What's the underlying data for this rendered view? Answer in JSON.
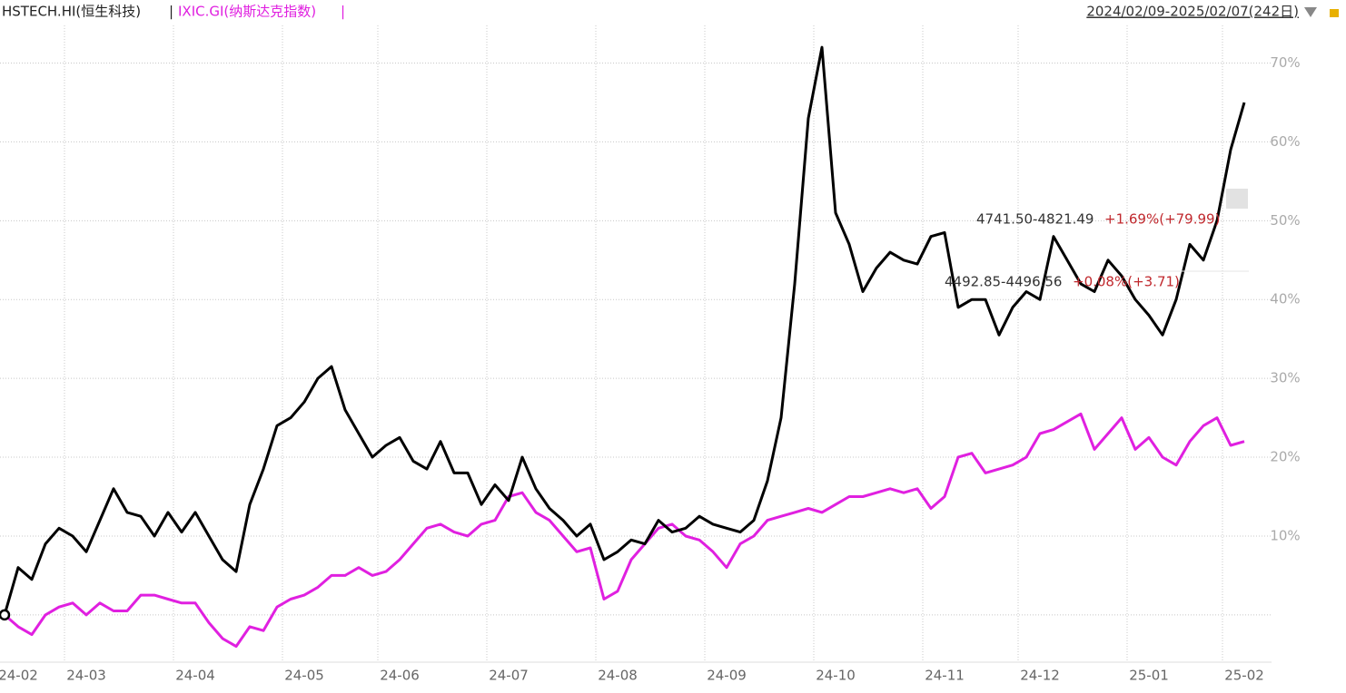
{
  "chart_data": {
    "type": "line",
    "header": {
      "left_series": "HSTECH.HI(恒生科技)",
      "separator": "|",
      "right_series": "IXIC.GI(纳斯达克指数)",
      "range": "2024/02/09-2025/02/07(242日)"
    },
    "categories": [
      null,
      "24-02",
      null,
      null,
      null,
      null,
      "24-03",
      null,
      null,
      null,
      null,
      null,
      null,
      null,
      "24-04",
      null,
      null,
      null,
      null,
      null,
      null,
      null,
      "24-05",
      null,
      null,
      null,
      null,
      null,
      null,
      "24-06",
      null,
      null,
      null,
      null,
      null,
      null,
      null,
      "24-07",
      null,
      null,
      null,
      null,
      null,
      null,
      null,
      "24-08",
      null,
      null,
      null,
      null,
      null,
      null,
      null,
      "24-09",
      null,
      null,
      null,
      null,
      null,
      null,
      null,
      "24-10",
      null,
      null,
      null,
      null,
      null,
      null,
      null,
      "24-11",
      null,
      null,
      null,
      null,
      null,
      null,
      "24-12",
      null,
      null,
      null,
      null,
      null,
      null,
      null,
      "25-01",
      null,
      null,
      null,
      null,
      null,
      null,
      "25-02"
    ],
    "series": [
      {
        "name": "HSTECH.HI(恒生科技)",
        "color": "#000000",
        "values": [
          0,
          6,
          4.5,
          9,
          11,
          10,
          8,
          12,
          16,
          13,
          12.5,
          10,
          13,
          10.5,
          13,
          10,
          7,
          5.5,
          14,
          18.5,
          24,
          25,
          27,
          30,
          31.5,
          26,
          23,
          20,
          21.5,
          22.5,
          19.5,
          18.5,
          22,
          18,
          18,
          14,
          16.5,
          14.5,
          20,
          16,
          13.5,
          12,
          10,
          11.5,
          7,
          8,
          9.5,
          9,
          12,
          10.5,
          11,
          12.5,
          11.5,
          11,
          10.5,
          12,
          17,
          25,
          42,
          63,
          72,
          51,
          47,
          41,
          44,
          46,
          45,
          44.5,
          48,
          48.5,
          39,
          40,
          40,
          35.5,
          39,
          41,
          40,
          48,
          45,
          42,
          41,
          45,
          43,
          40,
          38,
          35.5,
          40,
          47,
          45,
          50,
          59,
          65
        ]
      },
      {
        "name": "IXIC.GI(纳斯达克指数)",
        "color": "#e020e0",
        "values": [
          0,
          -1.5,
          -2.5,
          0,
          1,
          1.5,
          0,
          1.5,
          0.5,
          0.5,
          2.5,
          2.5,
          2,
          1.5,
          1.5,
          -1,
          -3,
          -4,
          -1.5,
          -2,
          1,
          2,
          2.5,
          3.5,
          5,
          5,
          6,
          5,
          5.5,
          7,
          9,
          11,
          11.5,
          10.5,
          10,
          11.5,
          12,
          15,
          15.5,
          13,
          12,
          10,
          8,
          8.5,
          2,
          3,
          7,
          9,
          11,
          11.5,
          10,
          9.5,
          8,
          6,
          9,
          10,
          12,
          12.5,
          13,
          13.5,
          13,
          14,
          15,
          15,
          15.5,
          16,
          15.5,
          16,
          13.5,
          15,
          20,
          20.5,
          18,
          18.5,
          19,
          20,
          23,
          23.5,
          24.5,
          25.5,
          21,
          23,
          25,
          21,
          22.5,
          20,
          19,
          22,
          24,
          25,
          21.5,
          22
        ]
      }
    ],
    "ylim": [
      -6,
      78
    ],
    "yticks": [
      0,
      {
        "value": 10,
        "label": "10%"
      },
      {
        "value": 20,
        "label": "20%"
      },
      {
        "value": 30,
        "label": "30%"
      },
      {
        "value": 40,
        "label": "40%"
      },
      {
        "value": 50,
        "label": "50%"
      },
      {
        "value": 60,
        "label": "60%"
      },
      {
        "value": 70,
        "label": "70%"
      }
    ],
    "grid": true,
    "annotations": [
      {
        "range": "4741.50-4821.49",
        "change": "+1.69%(+79.99)"
      },
      {
        "range": "4492.85-4496.56",
        "change": "+0.08%(+3.71)"
      }
    ]
  }
}
